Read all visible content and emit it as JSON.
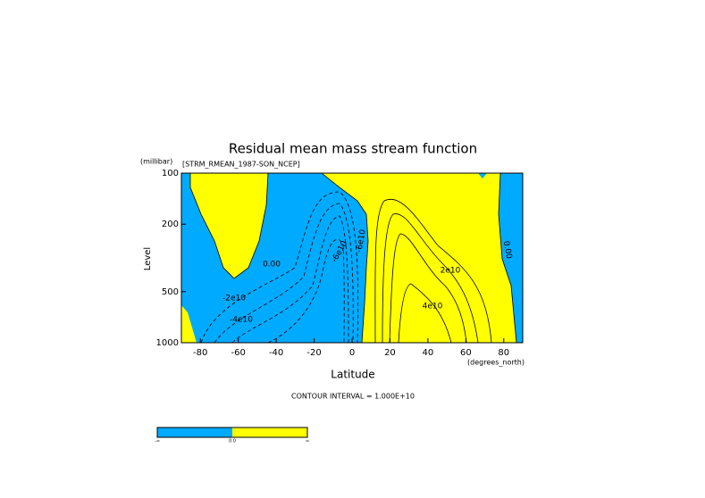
{
  "chart_data": {
    "type": "contour",
    "title": "Residual mean mass stream function",
    "subtitle": "[STRM_RMEAN_1987-SON_NCEP]",
    "y_unit": "(millibar)",
    "y_label": "Level",
    "x_label": "Latitude",
    "x_unit": "(degrees_north)",
    "note": "CONTOUR INTERVAL = 1.000E+10",
    "xlim": [
      -90,
      90
    ],
    "xticks": [
      -80,
      -60,
      -40,
      -20,
      0,
      20,
      40,
      60,
      80
    ],
    "ylim": [
      1000,
      100
    ],
    "yticks": [
      100,
      200,
      500,
      1000
    ],
    "log_y": true,
    "colors": [
      "#00aaff",
      "#ffff00"
    ],
    "contour_labels": [
      "0.00",
      "-2e10",
      "-4e10",
      "-6e10",
      "-6e10",
      "2e10",
      "4e10",
      "0.00"
    ],
    "colorbar_labels": [
      "-∞",
      "0.0",
      "∞"
    ]
  }
}
